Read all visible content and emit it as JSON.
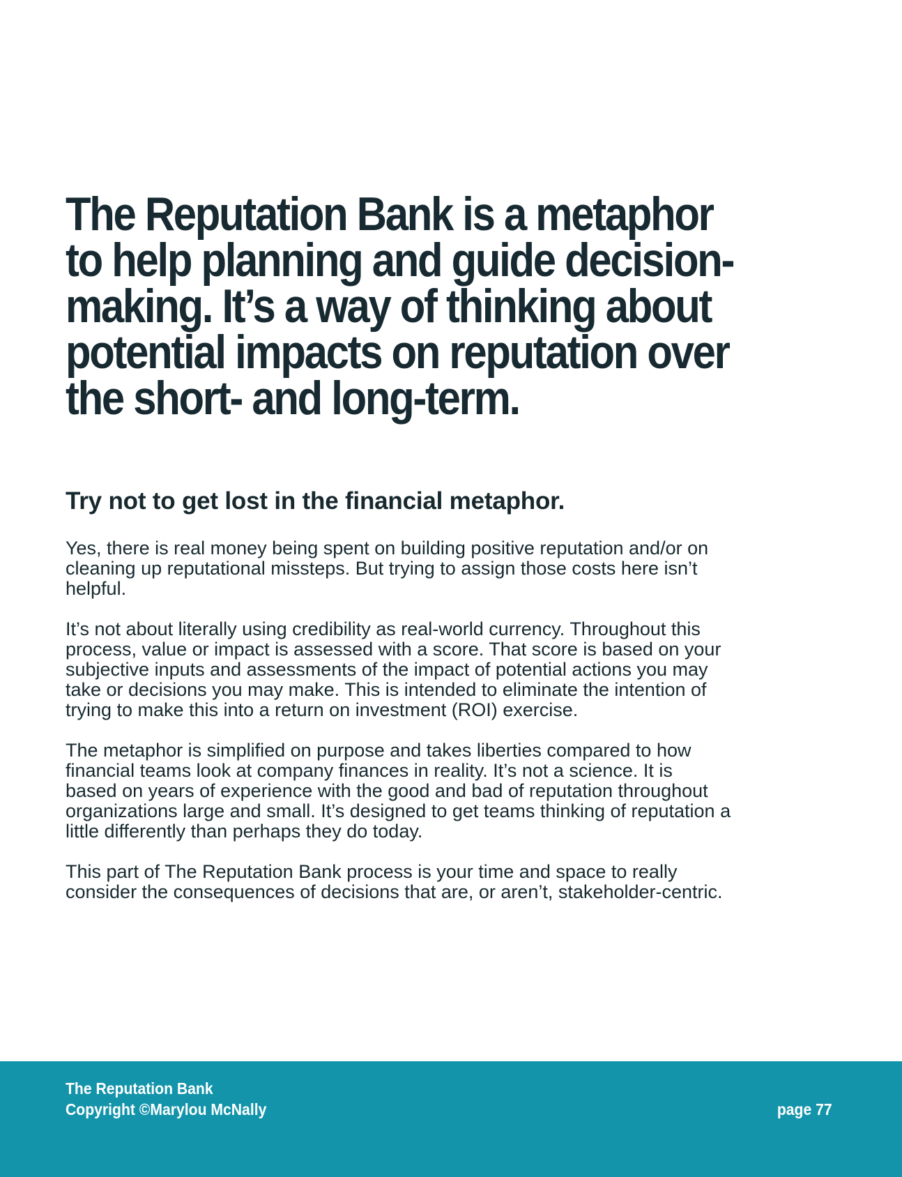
{
  "headline": {
    "lines": [
      "The Reputation Bank is a metaphor",
      "to help planning and guide decision-",
      "making. It’s a way of thinking about",
      "potential impacts on reputation over",
      "the short- and long-term."
    ]
  },
  "subheading": "Try not to get lost in the financial metaphor.",
  "body": {
    "paragraphs": [
      "Yes, there is real money being spent on building positive reputation and/or on\ncleaning up reputational missteps. But trying to assign those costs here isn’t\nhelpful.",
      "It’s not about literally using credibility as real-world currency. Throughout this\nprocess, value or impact is assessed with a score. That score is based on your\nsubjective inputs and assessments of the impact of potential actions you may\ntake or decisions you may make. This is intended to eliminate the intention of\ntrying to make this into a return on investment (ROI) exercise.",
      "The metaphor is simplified on purpose and takes liberties compared to how\nfinancial teams look at company finances in reality. It’s not a science. It is\nbased on years of experience with the good and bad of reputation throughout\norganizations large and small. It’s designed to get teams thinking of reputation a\nlittle differently than perhaps they do today.",
      "This part of The Reputation Bank process is your time and space to really\nconsider the consequences of decisions that are, or aren’t, stakeholder-centric."
    ]
  },
  "footer": {
    "book_title": "The Reputation Bank",
    "copyright": "Copyright ©Marylou McNally",
    "page_label": "page 77"
  },
  "colors": {
    "text": "#17292f",
    "footer_background": "#1394aa",
    "footer_text": "#ffffff"
  }
}
